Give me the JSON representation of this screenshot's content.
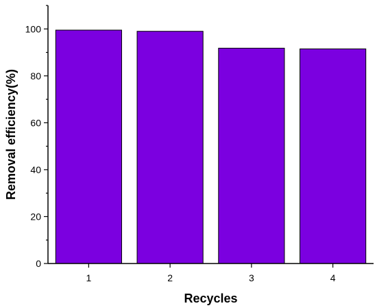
{
  "chart_data": {
    "type": "bar",
    "title": "",
    "xlabel": "Recycles",
    "ylabel": "Removal efficiency(%)",
    "categories": [
      "1",
      "2",
      "3",
      "4"
    ],
    "values": [
      99.5,
      99.0,
      91.8,
      91.5
    ],
    "ylim": [
      0,
      110
    ],
    "yticks": [
      0,
      20,
      40,
      60,
      80,
      100
    ],
    "grid": false,
    "legend": "none",
    "bar_color": "#7b00e0",
    "bar_edge_color": "#000000"
  }
}
